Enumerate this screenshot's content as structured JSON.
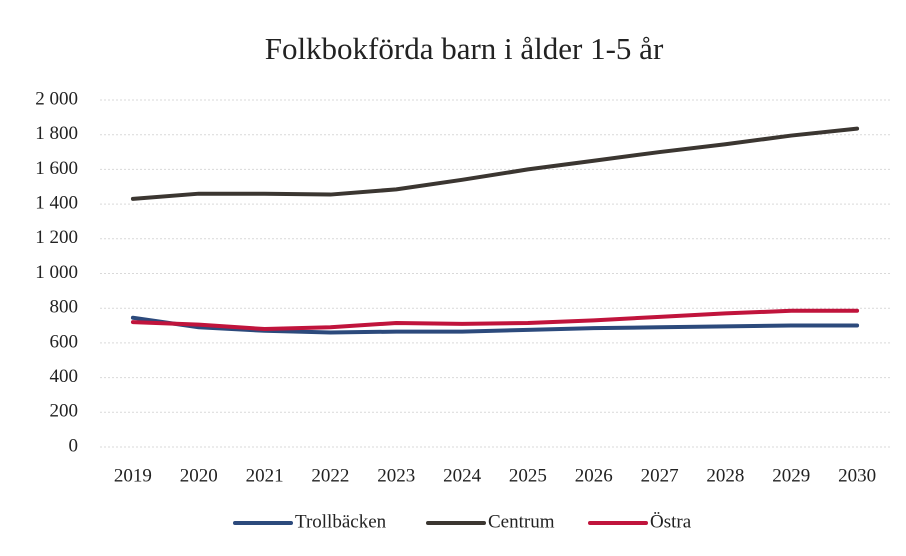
{
  "chart_data": {
    "type": "line",
    "title": "Folkbokförda barn i ålder 1-5 år",
    "categories": [
      "2019",
      "2020",
      "2021",
      "2022",
      "2023",
      "2024",
      "2025",
      "2026",
      "2027",
      "2028",
      "2029",
      "2030"
    ],
    "series": [
      {
        "name": "Trollbäcken",
        "color": "#2c4a7c",
        "values": [
          745,
          690,
          670,
          660,
          665,
          665,
          675,
          685,
          690,
          695,
          700,
          700
        ]
      },
      {
        "name": "Centrum",
        "color": "#3b3631",
        "values": [
          1430,
          1460,
          1460,
          1455,
          1485,
          1540,
          1600,
          1650,
          1700,
          1745,
          1795,
          1835
        ]
      },
      {
        "name": "Östra",
        "color": "#c0143c",
        "values": [
          720,
          705,
          680,
          690,
          715,
          710,
          715,
          730,
          750,
          770,
          785,
          785
        ]
      }
    ],
    "ylim": [
      0,
      2000
    ],
    "yticks": [
      0,
      200,
      400,
      600,
      800,
      {
        "value": 1000,
        "label": "1 000"
      },
      {
        "value": 1200,
        "label": "1 200"
      },
      {
        "value": 1400,
        "label": "1 400"
      },
      {
        "value": 1600,
        "label": "1 600"
      },
      {
        "value": 1800,
        "label": "1 800"
      },
      {
        "value": 2000,
        "label": "2 000"
      }
    ],
    "grid": true,
    "legend": "bottom"
  }
}
